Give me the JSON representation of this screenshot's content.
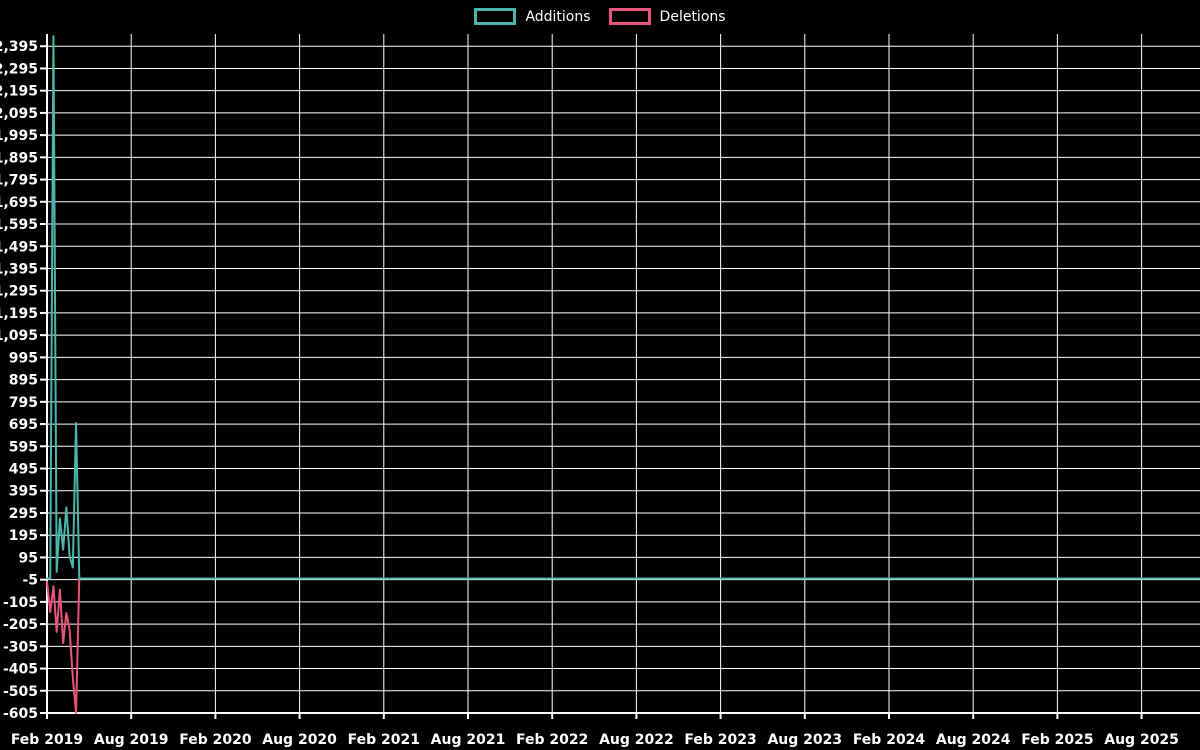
{
  "page": {
    "background": "#000000",
    "text_color": "#ffffff"
  },
  "legend": {
    "position": "top-center",
    "items": [
      {
        "label": "Additions",
        "color": "#4db6ac"
      },
      {
        "label": "Deletions",
        "color": "#e8547c"
      }
    ]
  },
  "chart_data": {
    "type": "line",
    "title": "",
    "xlabel": "",
    "ylabel": "",
    "background": "#000000",
    "grid": true,
    "grid_color": "#ffffff",
    "axis_color": "#ffffff",
    "legend_position": "top-center",
    "x_axis": {
      "tick_labels": [
        "Feb 2019",
        "Aug 2019",
        "Feb 2020",
        "Aug 2020",
        "Feb 2021",
        "Aug 2021",
        "Feb 2022",
        "Aug 2022",
        "Feb 2023",
        "Aug 2023",
        "Feb 2024",
        "Aug 2024",
        "Feb 2025",
        "Aug 2025"
      ],
      "months_per_tick": 6,
      "plot_extends_past_last_tick": true
    },
    "y_axis": {
      "min": -605,
      "max": 2450,
      "tick_step": 100,
      "tick_labels": [
        2395,
        2295,
        2195,
        2095,
        1995,
        1895,
        1795,
        1695,
        1595,
        1495,
        1395,
        1295,
        1195,
        1095,
        995,
        895,
        795,
        695,
        595,
        495,
        395,
        295,
        195,
        95,
        -5,
        -105,
        -205,
        -305,
        -405,
        -505,
        -605
      ]
    },
    "weeks": [
      "2019-02-03",
      "2019-02-10",
      "2019-02-17",
      "2019-02-24",
      "2019-03-03",
      "2019-03-10",
      "2019-03-17",
      "2019-03-24",
      "2019-03-31",
      "2019-04-07",
      "2019-04-14",
      "2019-04-21",
      "2019-04-28",
      "2019-05-05"
    ],
    "series": [
      {
        "name": "Additions",
        "color": "#4db6ac",
        "values": [
          0,
          0,
          2440,
          30,
          270,
          130,
          320,
          100,
          50,
          700,
          0,
          0,
          0,
          0
        ],
        "remaining_weeks_value": 0
      },
      {
        "name": "Deletions",
        "color": "#e8547c",
        "values": [
          -15,
          -150,
          -35,
          -240,
          -50,
          -290,
          -155,
          -230,
          -445,
          -605,
          0,
          0,
          0,
          0
        ],
        "remaining_weeks_value": 0
      }
    ]
  }
}
